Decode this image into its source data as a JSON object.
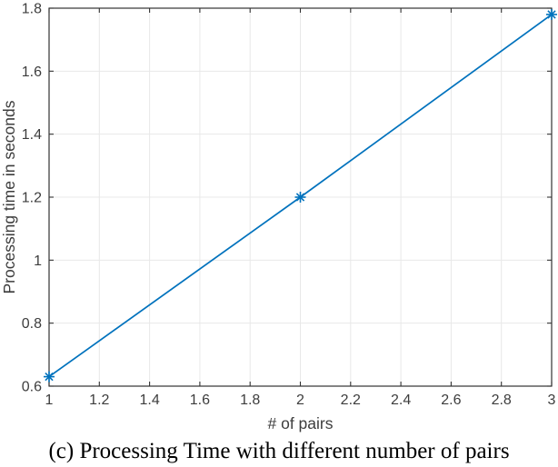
{
  "chart_data": {
    "type": "line",
    "x": [
      1,
      2,
      3
    ],
    "series": [
      {
        "name": "processing_time",
        "values": [
          0.63,
          1.2,
          1.78
        ],
        "color": "#0072BD",
        "marker": "asterisk"
      }
    ],
    "title": "",
    "xlabel": "# of pairs",
    "ylabel": "Processing time in seconds",
    "xlim": [
      1,
      3
    ],
    "ylim": [
      0.6,
      1.8
    ],
    "xticks": [
      1,
      1.2,
      1.4,
      1.6,
      1.8,
      2,
      2.2,
      2.4,
      2.6,
      2.8,
      3
    ],
    "yticks": [
      0.6,
      0.8,
      1,
      1.2,
      1.4,
      1.6,
      1.8
    ],
    "grid": true,
    "legend": "none",
    "colors": {
      "line": "#0072BD",
      "grid": "#E8E8E8",
      "axis": "#333333",
      "tick_label": "#3D3D3D",
      "background": "#FFFFFF"
    }
  },
  "caption": "(c) Processing Time with different number of pairs"
}
